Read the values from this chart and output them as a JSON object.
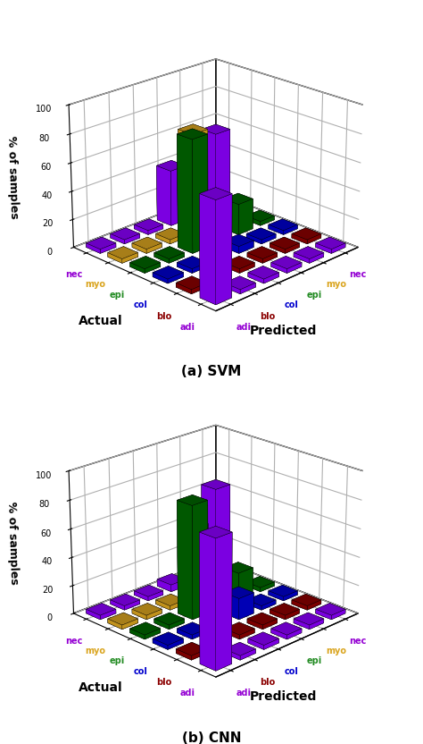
{
  "classes": [
    "adi",
    "blo",
    "col",
    "epi",
    "myo",
    "nec"
  ],
  "class_colors_actual": [
    "#8B00FF",
    "#8B0000",
    "#0000CD",
    "#006400",
    "#DAA520",
    "#8B00FF"
  ],
  "label_colors_actual": [
    "#9400D3",
    "#8B0000",
    "#0000CD",
    "#228B22",
    "#DAA520",
    "#9400D3"
  ],
  "label_colors_predicted": [
    "#9400D3",
    "#8B0000",
    "#0000CD",
    "#228B22",
    "#DAA520",
    "#9400D3"
  ],
  "svm_cm": [
    [
      70,
      3,
      3,
      3,
      3,
      3
    ],
    [
      3,
      52,
      3,
      3,
      3,
      3
    ],
    [
      3,
      3,
      18,
      5,
      3,
      3
    ],
    [
      3,
      3,
      80,
      3,
      22,
      3
    ],
    [
      3,
      3,
      3,
      72,
      12,
      3
    ],
    [
      3,
      3,
      3,
      40,
      3,
      55
    ]
  ],
  "cnn_cm": [
    [
      88,
      3,
      3,
      3,
      3,
      3
    ],
    [
      3,
      61,
      3,
      3,
      3,
      3
    ],
    [
      3,
      3,
      10,
      15,
      3,
      3
    ],
    [
      3,
      3,
      80,
      3,
      20,
      3
    ],
    [
      3,
      3,
      3,
      65,
      3,
      3
    ],
    [
      3,
      3,
      3,
      5,
      40,
      63
    ]
  ],
  "title_svm": "(a) SVM",
  "title_cnn": "(b) CNN",
  "ylabel": "% of samples",
  "actual_label": "Actual",
  "predicted_label": "Predicted",
  "figsize": [
    4.74,
    8.32
  ],
  "dpi": 100,
  "elev": 22,
  "azim": 225
}
